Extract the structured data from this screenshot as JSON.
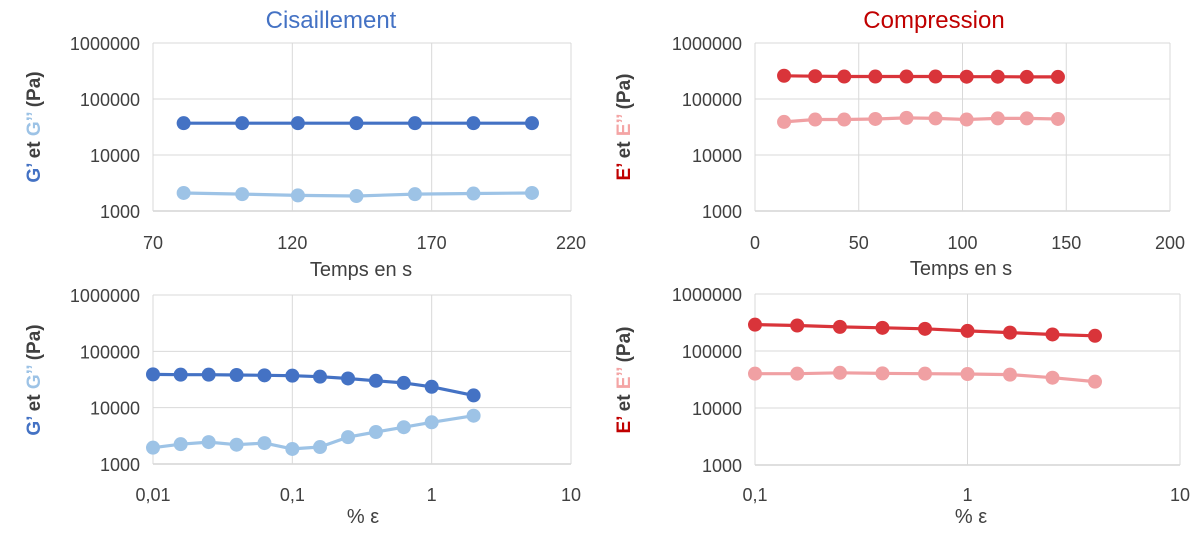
{
  "chart_data": [
    {
      "id": "shear_time",
      "type": "line",
      "title": "Cisaillement",
      "title_color": "#4472C4",
      "xlabel": "Temps en s",
      "ylabel": [
        {
          "text": "G’",
          "color": "#4472C4"
        },
        {
          "text": " et ",
          "color": "#404040"
        },
        {
          "text": "G’’",
          "color": "#9DC3E6"
        },
        {
          "text": " (Pa)",
          "color": "#404040"
        }
      ],
      "x_scale": "linear",
      "y_scale": "log",
      "xlim": [
        70,
        220
      ],
      "ylim": [
        1000,
        1000000
      ],
      "x_ticks": [
        70,
        120,
        170,
        220
      ],
      "x_tick_labels": [
        "70",
        "120",
        "170",
        "220"
      ],
      "y_ticks": [
        1000,
        10000,
        100000,
        1000000
      ],
      "y_tick_labels": [
        "1000",
        "10000",
        "100000",
        "1000000"
      ],
      "grid": true,
      "series": [
        {
          "color": "#4472C4",
          "x": [
            81,
            102,
            122,
            143,
            164,
            185,
            206
          ],
          "y": [
            37000,
            37000,
            37000,
            37000,
            37000,
            37000,
            37000
          ]
        },
        {
          "color": "#9DC3E6",
          "x": [
            81,
            102,
            122,
            143,
            164,
            185,
            206
          ],
          "y": [
            2100,
            2000,
            1900,
            1850,
            2000,
            2050,
            2100
          ]
        }
      ]
    },
    {
      "id": "compression_time",
      "type": "line",
      "title": "Compression",
      "title_color": "#C00000",
      "xlabel": "Temps en s",
      "ylabel": [
        {
          "text": "E’",
          "color": "#C00000"
        },
        {
          "text": " et ",
          "color": "#404040"
        },
        {
          "text": "E’’",
          "color": "#F4A5A5"
        },
        {
          "text": " (Pa)",
          "color": "#404040"
        }
      ],
      "x_scale": "linear",
      "y_scale": "log",
      "xlim": [
        0,
        200
      ],
      "ylim": [
        1000,
        1000000
      ],
      "x_ticks": [
        0,
        50,
        100,
        150,
        200
      ],
      "x_tick_labels": [
        "0",
        "50",
        "100",
        "150",
        "200"
      ],
      "y_ticks": [
        1000,
        10000,
        100000,
        1000000
      ],
      "y_tick_labels": [
        "1000",
        "10000",
        "100000",
        "1000000"
      ],
      "grid": true,
      "series": [
        {
          "color": "#D9343A",
          "x": [
            14,
            29,
            43,
            58,
            73,
            87,
            102,
            117,
            131,
            146
          ],
          "y": [
            260000,
            255000,
            252000,
            252000,
            252000,
            252000,
            250000,
            250000,
            248000,
            248000
          ]
        },
        {
          "color": "#F0A0A3",
          "x": [
            14,
            29,
            43,
            58,
            73,
            87,
            102,
            117,
            131,
            146
          ],
          "y": [
            39000,
            43000,
            43000,
            44000,
            46000,
            45000,
            43000,
            45000,
            45000,
            44000
          ]
        }
      ]
    },
    {
      "id": "shear_strain",
      "type": "line",
      "title": "",
      "xlabel": "% ε",
      "ylabel": [
        {
          "text": "G’",
          "color": "#4472C4"
        },
        {
          "text": " et ",
          "color": "#404040"
        },
        {
          "text": "G’’",
          "color": "#9DC3E6"
        },
        {
          "text": " (Pa)",
          "color": "#404040"
        }
      ],
      "x_scale": "log",
      "y_scale": "log",
      "xlim": [
        0.01,
        10
      ],
      "ylim": [
        1000,
        1000000
      ],
      "x_ticks": [
        0.01,
        0.1,
        1,
        10
      ],
      "x_tick_labels": [
        "0,01",
        "0,1",
        "1",
        "10"
      ],
      "y_ticks": [
        1000,
        10000,
        100000,
        1000000
      ],
      "y_tick_labels": [
        "1000",
        "10000",
        "100000",
        "1000000"
      ],
      "grid": true,
      "series": [
        {
          "color": "#4472C4",
          "x": [
            0.01,
            0.0158,
            0.0251,
            0.0398,
            0.0631,
            0.1,
            0.158,
            0.251,
            0.398,
            0.631,
            1.0,
            2.0
          ],
          "y": [
            39000,
            38500,
            38500,
            38000,
            37500,
            37000,
            35500,
            33000,
            30000,
            27500,
            23500,
            16500
          ]
        },
        {
          "color": "#9DC3E6",
          "x": [
            0.01,
            0.0158,
            0.0251,
            0.0398,
            0.0631,
            0.1,
            0.158,
            0.251,
            0.398,
            0.631,
            1.0,
            2.0
          ],
          "y": [
            1950,
            2250,
            2450,
            2200,
            2350,
            1850,
            2000,
            3000,
            3700,
            4500,
            5500,
            7200
          ]
        }
      ]
    },
    {
      "id": "compression_strain",
      "type": "line",
      "title": "",
      "xlabel": "% ε",
      "ylabel": [
        {
          "text": "E’",
          "color": "#C00000"
        },
        {
          "text": " et ",
          "color": "#404040"
        },
        {
          "text": "E’’",
          "color": "#F4A5A5"
        },
        {
          "text": " (Pa)",
          "color": "#404040"
        }
      ],
      "x_scale": "log",
      "y_scale": "log",
      "xlim": [
        0.1,
        10
      ],
      "ylim": [
        1000,
        1000000
      ],
      "x_ticks": [
        0.1,
        1,
        10
      ],
      "x_tick_labels": [
        "0,1",
        "1",
        "10"
      ],
      "y_ticks": [
        1000,
        10000,
        100000,
        1000000
      ],
      "y_tick_labels": [
        "1000",
        "10000",
        "100000",
        "1000000"
      ],
      "grid": true,
      "series": [
        {
          "color": "#D9343A",
          "x": [
            0.1,
            0.158,
            0.251,
            0.398,
            0.631,
            1.0,
            1.585,
            2.512,
            3.981
          ],
          "y": [
            290000,
            280000,
            265000,
            255000,
            245000,
            225000,
            210000,
            195000,
            185000
          ]
        },
        {
          "color": "#F0A0A3",
          "x": [
            0.1,
            0.158,
            0.251,
            0.398,
            0.631,
            1.0,
            1.585,
            2.512,
            3.981
          ],
          "y": [
            40000,
            40000,
            41500,
            40500,
            40000,
            39500,
            38500,
            34000,
            29000
          ]
        }
      ]
    }
  ]
}
